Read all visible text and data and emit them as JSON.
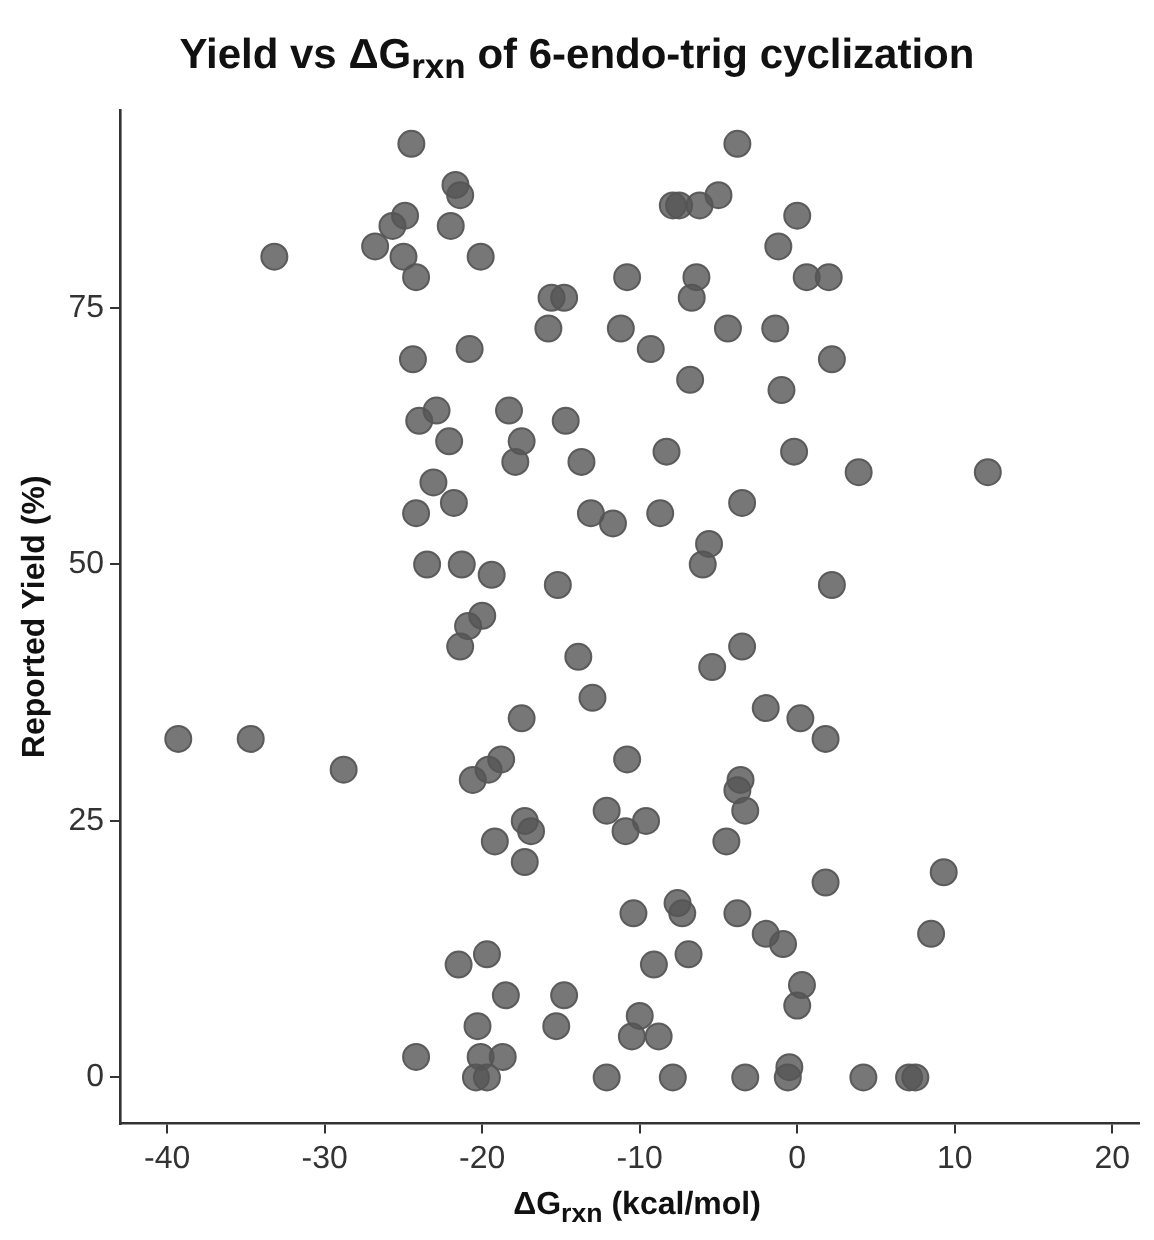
{
  "chart_data": {
    "type": "scatter",
    "title": "Yield vs ΔG$_{rxn}$ of 6-endo-trig cyclization",
    "xlabel": "ΔG$_{rxn}$ (kcal/mol)",
    "ylabel": "Reported Yield (%)",
    "xlim": [
      -43,
      21.7
    ],
    "xticks": [
      -40,
      -30,
      -20,
      -10,
      0,
      10,
      20
    ],
    "ylim": [
      -4.5,
      94.3
    ],
    "yticks": [
      0,
      25,
      50,
      75
    ],
    "grid": false,
    "legend": false,
    "marker": "circle",
    "series": [
      {
        "color": "#555555",
        "x": [
          -24.5,
          -21.7,
          -21.4,
          -24.9,
          -25.7,
          -26.8,
          -22.0,
          -33.2,
          -20.1,
          -25.0,
          -24.2,
          -15.6,
          -14.8,
          -15.8,
          -24.4,
          -20.8,
          -24.0,
          -22.9,
          -22.1,
          -18.3,
          -17.5,
          -17.9,
          -14.7,
          -13.7,
          -23.1,
          -21.8,
          -24.2,
          -13.1,
          -23.5,
          -21.3,
          -19.4,
          -15.2,
          -20.0,
          -3.8,
          -7.9,
          -7.5,
          -6.2,
          -5.0,
          0.0,
          -1.2,
          0.6,
          2.0,
          -10.8,
          -6.4,
          -6.7,
          -4.4,
          -1.4,
          -11.2,
          -9.3,
          -6.8,
          2.2,
          -1.0,
          -8.3,
          -0.2,
          3.9,
          12.1,
          -11.7,
          -8.7,
          -3.5,
          -5.6,
          -6.0,
          2.2,
          -20.9,
          -21.4,
          -13.9,
          -13.0,
          -17.5,
          -39.3,
          -34.7,
          -28.8,
          -18.8,
          -19.6,
          -20.6,
          -17.3,
          -16.9,
          -19.2,
          -17.3,
          -12.1,
          -19.7,
          -21.5,
          -18.5,
          -14.8,
          -15.3,
          -20.3,
          -24.2,
          -20.1,
          -18.7,
          -20.4,
          -19.7,
          -12.1,
          -3.5,
          -5.4,
          -2.0,
          0.2,
          1.8,
          -10.8,
          -3.6,
          -3.8,
          -3.3,
          -10.9,
          -9.6,
          -4.5,
          1.8,
          9.3,
          -10.4,
          -7.6,
          -7.3,
          -3.8,
          -2.0,
          -0.9,
          8.5,
          -9.1,
          -6.9,
          0.3,
          0.0,
          -10.0,
          -10.5,
          -8.8,
          -7.9,
          -3.3,
          -0.5,
          -0.6,
          4.2,
          7.1,
          7.5
        ],
        "values": [
          91,
          87,
          86,
          84,
          83,
          81,
          83,
          80,
          80,
          80,
          78,
          76,
          76,
          73,
          70,
          71,
          64,
          65,
          62,
          65,
          62,
          60,
          64,
          60,
          58,
          56,
          55,
          55,
          50,
          50,
          49,
          48,
          45,
          91,
          85,
          85,
          85,
          86,
          84,
          81,
          78,
          78,
          78,
          78,
          76,
          73,
          73,
          73,
          71,
          68,
          70,
          67,
          61,
          61,
          59,
          59,
          54,
          55,
          56,
          52,
          50,
          48,
          44,
          42,
          41,
          37,
          35,
          33,
          33,
          30,
          31,
          30,
          29,
          25,
          24,
          23,
          21,
          26,
          12,
          11,
          8,
          8,
          5,
          5,
          2,
          2,
          2,
          0,
          0,
          0,
          42,
          40,
          36,
          35,
          33,
          31,
          29,
          28,
          26,
          24,
          25,
          23,
          19,
          20,
          16,
          17,
          16,
          16,
          14,
          13,
          14,
          11,
          12,
          9,
          7,
          6,
          4,
          4,
          0,
          0,
          1,
          0,
          0,
          0,
          0
        ]
      }
    ]
  }
}
